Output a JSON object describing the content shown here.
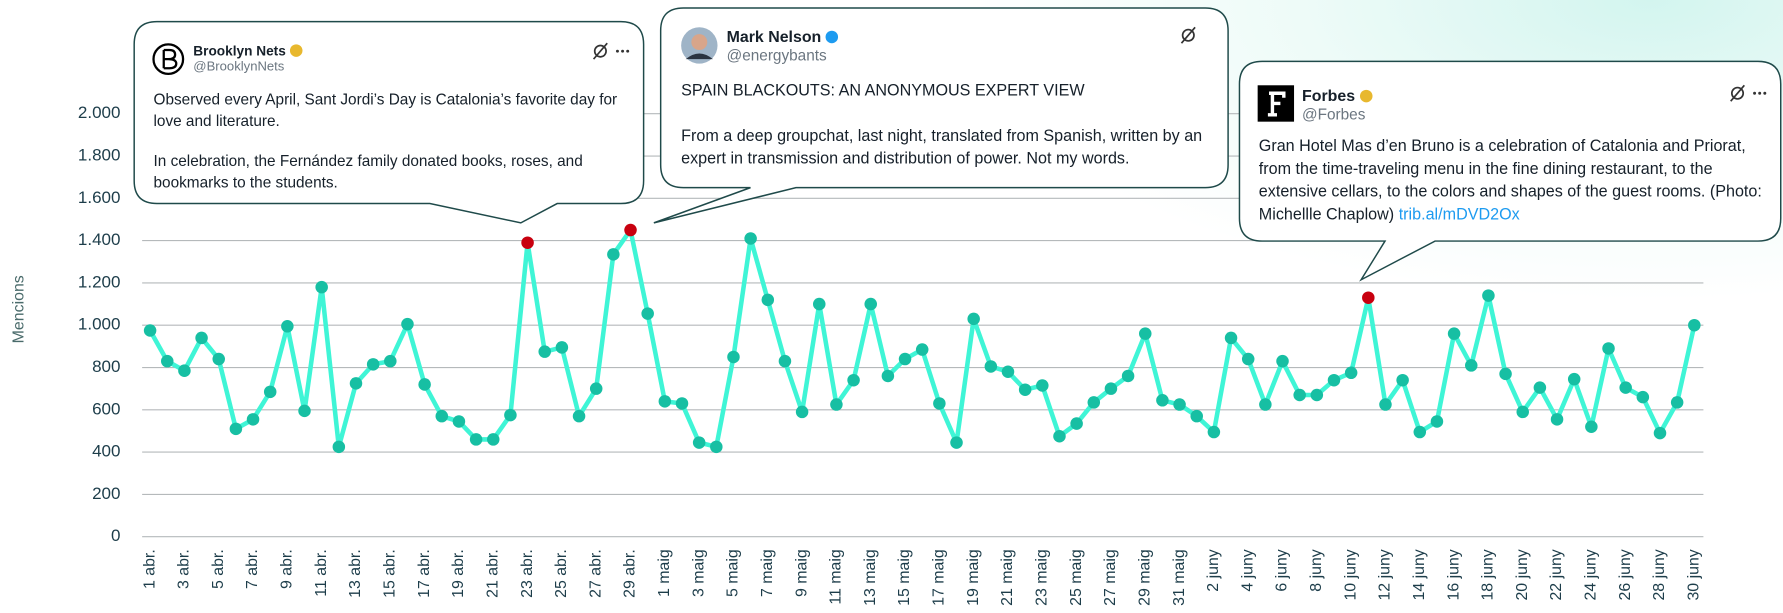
{
  "chart_data": {
    "type": "line",
    "y_label": "Mencions",
    "categories": [
      "1 abr.",
      null,
      "3 abr.",
      null,
      "5 abr.",
      null,
      "7 abr.",
      null,
      "9 abr.",
      null,
      "11 abr.",
      null,
      "13 abr.",
      null,
      "15 abr.",
      null,
      "17 abr.",
      null,
      "19 abr.",
      null,
      "21 abr.",
      null,
      "23 abr.",
      null,
      "25 abr.",
      null,
      "27 abr.",
      null,
      "29 abr.",
      null,
      "1 maig",
      null,
      "3 maig",
      null,
      "5 maig",
      null,
      "7 maig",
      null,
      "9 maig",
      null,
      "11 maig",
      null,
      "13 maig",
      null,
      "15 maig",
      null,
      "17 maig",
      null,
      "19 maig",
      null,
      "21 maig",
      null,
      "23 maig",
      null,
      "25 maig",
      null,
      "27 maig",
      null,
      "29 maig",
      null,
      "31 maig",
      null,
      "2 juny",
      null,
      "4 juny",
      null,
      "6 juny",
      null,
      "8 juny",
      null,
      "10 juny",
      null,
      "12 juny",
      null,
      "14 juny",
      null,
      "16 juny",
      null,
      "18 juny",
      null,
      "20 juny",
      null,
      "22 juny",
      null,
      "24 juny",
      null,
      "26 juny",
      null,
      "28 juny",
      null,
      "30 juny"
    ],
    "values": [
      975,
      830,
      785,
      940,
      840,
      510,
      555,
      685,
      995,
      595,
      1180,
      425,
      725,
      815,
      830,
      1005,
      720,
      570,
      545,
      460,
      460,
      575,
      1390,
      875,
      895,
      570,
      700,
      1335,
      1450,
      1055,
      640,
      630,
      445,
      425,
      850,
      1410,
      1120,
      830,
      590,
      1100,
      625,
      740,
      1100,
      760,
      840,
      885,
      630,
      445,
      1030,
      805,
      780,
      695,
      715,
      475,
      535,
      635,
      700,
      760,
      960,
      645,
      625,
      570,
      495,
      940,
      840,
      625,
      830,
      670,
      670,
      740,
      775,
      1130,
      625,
      740,
      495,
      545,
      960,
      810,
      1140,
      770,
      590,
      705,
      555,
      745,
      520,
      890,
      705,
      660,
      490,
      635,
      1000
    ],
    "line_color": "#3ff5d6",
    "marker_color": "#17bfa3",
    "highlight_color": "#c8000f",
    "ylim": [
      0,
      2000
    ],
    "yticks": [
      0,
      200,
      400,
      600,
      800,
      {
        "value": 1000,
        "label": "1.000"
      },
      {
        "value": 1200,
        "label": "1.200"
      },
      {
        "value": 1400,
        "label": "1.400"
      },
      {
        "value": 1600,
        "label": "1.600"
      },
      {
        "value": 1800,
        "label": "1.800"
      },
      {
        "value": 2000,
        "label": "2.000"
      }
    ],
    "grid": true,
    "annotations": [
      {
        "index": 22,
        "name": "Brooklyn Nets",
        "handle": "@BrooklynNets",
        "paragraphs": [
          "Observed every April, Sant Jordi’s Day is Catalonia’s favorite day for love and literature.",
          "In celebration, the Fernández family donated books, roses, and bookmarks to the students."
        ]
      },
      {
        "index": 28,
        "name": "Mark Nelson",
        "handle": "@energybants",
        "paragraphs": [
          "SPAIN BLACKOUTS: AN ANONYMOUS EXPERT VIEW",
          "From a deep groupchat, last night, translated from Spanish, written by an expert in transmission and distribution of power. Not my words."
        ]
      },
      {
        "index": 71,
        "name": "Forbes",
        "handle": "@Forbes",
        "paragraphs": [
          "Gran Hotel Mas d’en Bruno is a celebration of Catalonia and Priorat, from the time-traveling menu in the fine dining restaurant, to the extensive cellars, to the colors and shapes of the guest rooms. (Photo: Michellle Chaplow)"
        ],
        "link": "trib.al/mDVD2Ox"
      }
    ]
  }
}
